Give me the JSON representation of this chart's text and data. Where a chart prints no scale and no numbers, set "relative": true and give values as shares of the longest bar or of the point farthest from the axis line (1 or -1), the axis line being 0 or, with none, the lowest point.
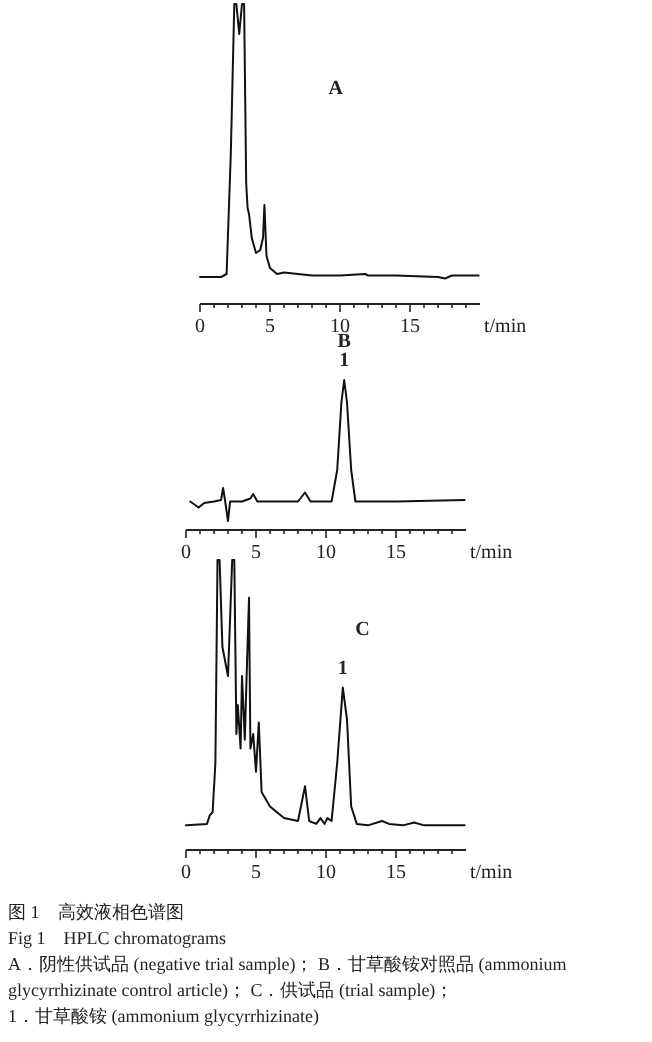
{
  "chart_data": [
    {
      "type": "line",
      "title": "A",
      "relative": true,
      "xlabel": "t/min",
      "xlim": [
        0,
        20
      ],
      "xticks": [
        0,
        {
          "value": 1,
          "label": null
        },
        {
          "value": 2,
          "label": null
        },
        {
          "value": 3,
          "label": null
        },
        {
          "value": 4,
          "label": null
        },
        5,
        {
          "value": 6,
          "label": null
        },
        {
          "value": 7,
          "label": null
        },
        {
          "value": 8,
          "label": null
        },
        {
          "value": 9,
          "label": null
        },
        10,
        {
          "value": 11,
          "label": null
        },
        {
          "value": 12,
          "label": null
        },
        {
          "value": 13,
          "label": null
        },
        {
          "value": 14,
          "label": null
        },
        15,
        {
          "value": 16,
          "label": null
        },
        {
          "value": 17,
          "label": null
        },
        {
          "value": 18,
          "label": null
        },
        {
          "value": 19,
          "label": null
        }
      ],
      "series": [
        {
          "color": "#111111",
          "x": [
            0,
            1.5,
            1.9,
            2.2,
            2.45,
            2.6,
            2.8,
            3.0,
            3.15,
            3.3,
            3.4,
            3.5,
            3.7,
            4.0,
            4.3,
            4.5,
            4.6,
            4.75,
            5,
            5.5,
            6,
            7,
            8,
            10,
            11.8,
            12,
            14,
            17,
            17.5,
            18,
            19.9
          ],
          "values": [
            0.09,
            0.09,
            0.1,
            0.5,
            1,
            1,
            0.9,
            1,
            1,
            0.4,
            0.32,
            0.3,
            0.22,
            0.17,
            0.18,
            0.22,
            0.33,
            0.16,
            0.12,
            0.1,
            0.105,
            0.1,
            0.095,
            0.095,
            0.1,
            0.095,
            0.095,
            0.09,
            0.085,
            0.095,
            0.095
          ]
        }
      ]
    },
    {
      "type": "line",
      "title": "B",
      "relative": true,
      "xlabel": "t/min",
      "xlim": [
        0,
        20
      ],
      "xticks": [
        0,
        {
          "value": 1,
          "label": null
        },
        {
          "value": 2,
          "label": null
        },
        {
          "value": 3,
          "label": null
        },
        {
          "value": 4,
          "label": null
        },
        5,
        {
          "value": 6,
          "label": null
        },
        {
          "value": 7,
          "label": null
        },
        {
          "value": 8,
          "label": null
        },
        {
          "value": 9,
          "label": null
        },
        10,
        {
          "value": 11,
          "label": null
        },
        {
          "value": 12,
          "label": null
        },
        {
          "value": 13,
          "label": null
        },
        {
          "value": 14,
          "label": null
        },
        15,
        {
          "value": 16,
          "label": null
        },
        {
          "value": 17,
          "label": null
        },
        {
          "value": 18,
          "label": null
        },
        {
          "value": 19,
          "label": null
        }
      ],
      "annotations": [
        {
          "text": "1",
          "x": 11.3,
          "y": 1
        }
      ],
      "series": [
        {
          "color": "#111111",
          "x": [
            0.3,
            0.6,
            0.9,
            1.3,
            2.0,
            2.5,
            2.65,
            2.8,
            3.0,
            3.15,
            4.0,
            4.6,
            4.8,
            5.1,
            8.0,
            8.5,
            8.9,
            10.4,
            10.8,
            11.1,
            11.3,
            11.5,
            11.8,
            12.1,
            15,
            19.9
          ],
          "values": [
            0.19,
            0.17,
            0.15,
            0.18,
            0.19,
            0.2,
            0.28,
            0.19,
            0.06,
            0.19,
            0.19,
            0.21,
            0.24,
            0.19,
            0.19,
            0.25,
            0.19,
            0.19,
            0.4,
            0.85,
            1,
            0.85,
            0.4,
            0.19,
            0.19,
            0.2
          ]
        }
      ]
    },
    {
      "type": "line",
      "title": "C",
      "relative": true,
      "xlabel": "t/min",
      "xlim": [
        0,
        20
      ],
      "xticks": [
        0,
        {
          "value": 1,
          "label": null
        },
        {
          "value": 2,
          "label": null
        },
        {
          "value": 3,
          "label": null
        },
        {
          "value": 4,
          "label": null
        },
        5,
        {
          "value": 6,
          "label": null
        },
        {
          "value": 7,
          "label": null
        },
        {
          "value": 8,
          "label": null
        },
        {
          "value": 9,
          "label": null
        },
        10,
        {
          "value": 11,
          "label": null
        },
        {
          "value": 12,
          "label": null
        },
        {
          "value": 13,
          "label": null
        },
        {
          "value": 14,
          "label": null
        },
        15,
        {
          "value": 16,
          "label": null
        },
        {
          "value": 17,
          "label": null
        },
        {
          "value": 18,
          "label": null
        },
        {
          "value": 19,
          "label": null
        }
      ],
      "annotations": [
        {
          "text": "1",
          "x": 11.2,
          "y": 0.56
        },
        "图 1　高效液相色谱图",
        "Fig 1　HPLC chromatograms",
        "A．阴性供试品 (negative trial sample)； B．甘草酸铵对照品 (ammonium glycyrrhizinate control article)； C．供试品 (trial sample)；",
        "1．甘草酸铵 (ammonium glycyrrhizinate)"
      ],
      "series": [
        {
          "color": "#111111",
          "x": [
            0,
            1.5,
            1.7,
            1.9,
            2.1,
            2.25,
            2.4,
            2.6,
            3.0,
            3.3,
            3.45,
            3.6,
            3.7,
            3.9,
            4.0,
            4.2,
            4.3,
            4.5,
            4.6,
            4.8,
            5.0,
            5.2,
            5.4,
            6,
            7,
            8,
            8.5,
            8.8,
            9.3,
            9.6,
            9.9,
            10.1,
            10.4,
            10.8,
            11.2,
            11.5,
            11.8,
            12.2,
            13,
            14,
            14.5,
            15.5,
            16.3,
            17,
            19.9
          ],
          "values": [
            0.085,
            0.09,
            0.12,
            0.13,
            0.3,
            1,
            1,
            0.7,
            0.6,
            1,
            1,
            0.4,
            0.5,
            0.35,
            0.6,
            0.38,
            0.55,
            0.87,
            0.35,
            0.4,
            0.27,
            0.44,
            0.2,
            0.15,
            0.11,
            0.1,
            0.22,
            0.1,
            0.09,
            0.11,
            0.09,
            0.11,
            0.1,
            0.3,
            0.56,
            0.45,
            0.15,
            0.09,
            0.085,
            0.1,
            0.09,
            0.085,
            0.095,
            0.085,
            0.085
          ]
        }
      ]
    }
  ]
}
